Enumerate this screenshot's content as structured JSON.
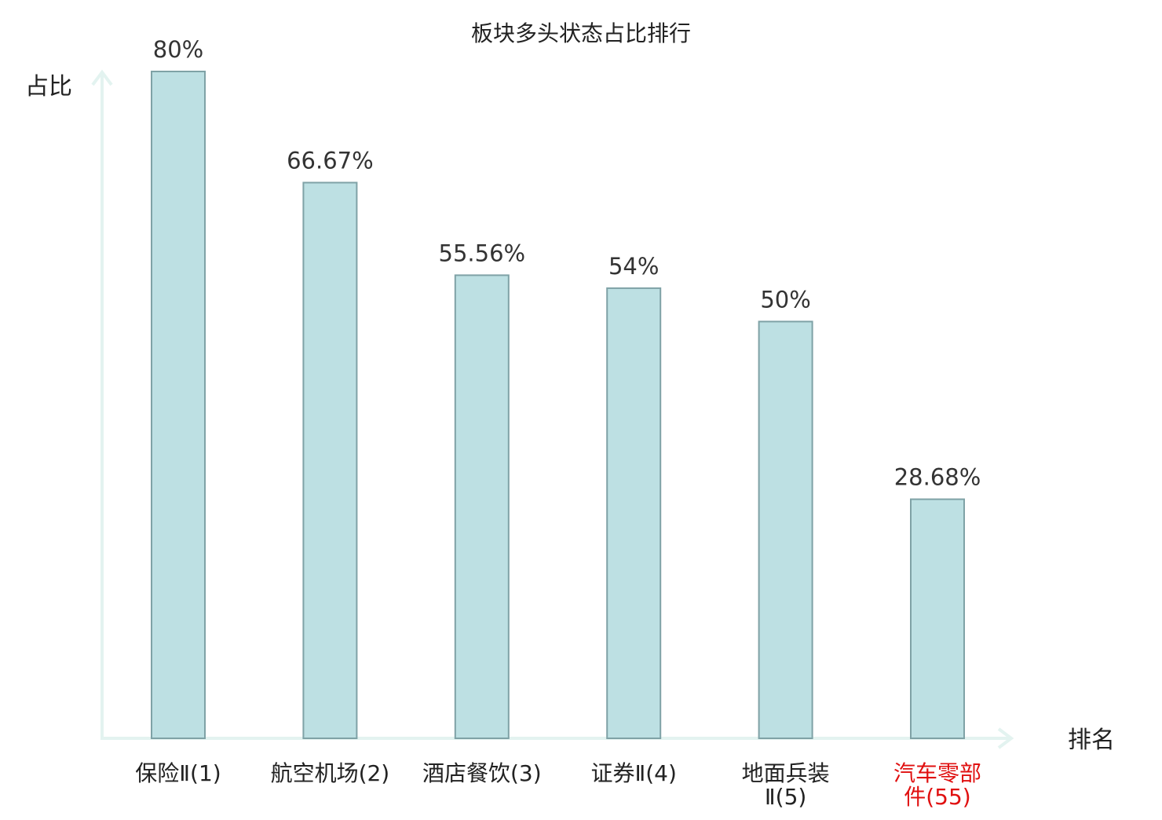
{
  "chart_data": {
    "type": "bar",
    "title": "板块多头状态占比排行",
    "ylabel": "占比",
    "xlabel": "排名",
    "categories": [
      [
        "保险Ⅱ(1)"
      ],
      [
        "航空机场(2)"
      ],
      [
        "酒店餐饮(3)"
      ],
      [
        "证券Ⅱ(4)"
      ],
      [
        "地面兵装",
        "Ⅱ(5)"
      ],
      [
        "汽车零部",
        "件(55)"
      ]
    ],
    "values": [
      80,
      66.67,
      55.56,
      54,
      50,
      28.68
    ],
    "value_labels": [
      "80%",
      "66.67%",
      "55.56%",
      "54%",
      "50%",
      "28.68%"
    ],
    "highlight_index": 5,
    "ylim": [
      0,
      80
    ],
    "grid": false,
    "legend": "none",
    "colors": {
      "bar_fill": "#bde0e3",
      "bar_stroke": "#7fa2a6",
      "axis": "#e3f3f0",
      "text": "#222222",
      "value_text": "#333333",
      "highlight_text": "#e01010"
    }
  }
}
